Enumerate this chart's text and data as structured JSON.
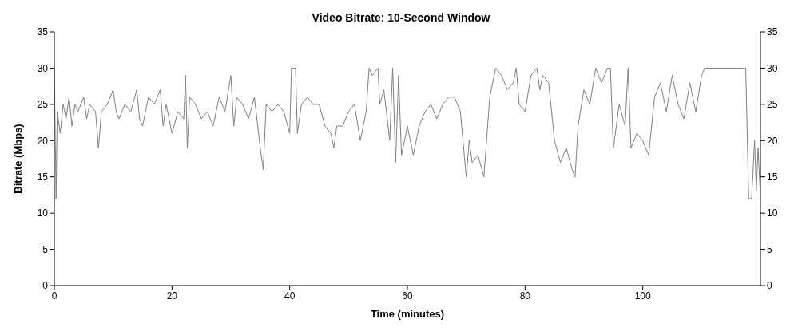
{
  "chart_data": {
    "type": "line",
    "title": "Video Bitrate: 10-Second Window",
    "xlabel": "Time (minutes)",
    "ylabel": "Bitrate (Mbps)",
    "xlim": [
      0,
      120
    ],
    "xticks": [
      0,
      20,
      40,
      60,
      80,
      100
    ],
    "ylim": [
      0,
      35
    ],
    "yticks": [
      0,
      5,
      10,
      15,
      20,
      25,
      30,
      35
    ],
    "y2lim": [
      0,
      35
    ],
    "y2ticks": [
      0,
      5,
      10,
      15,
      20,
      25,
      30,
      35
    ],
    "marker": "none",
    "line_style": "solid",
    "series": [
      {
        "color": "#808080",
        "x": [
          0,
          0.3,
          0.5,
          1,
          1.5,
          2,
          2.5,
          3,
          3.5,
          4,
          5,
          5.5,
          6,
          7,
          7.5,
          8,
          9,
          10,
          10.5,
          11,
          12,
          13,
          14,
          14.5,
          15,
          16,
          17,
          18,
          18.5,
          19,
          20,
          21,
          22,
          22.3,
          22.6,
          23,
          24,
          25,
          26,
          27,
          28,
          29,
          30,
          30.5,
          31,
          32,
          33,
          34,
          35,
          35.5,
          36,
          37,
          38,
          39,
          40,
          40.3,
          41,
          41.3,
          42,
          43,
          44,
          45,
          46,
          47,
          47.5,
          48,
          49,
          50,
          51,
          52,
          53,
          53.5,
          54,
          55,
          55.3,
          56,
          57,
          57.5,
          58,
          58.5,
          59,
          60,
          61,
          62,
          63,
          64,
          65,
          66,
          67,
          68,
          69,
          70,
          70.5,
          71,
          72,
          73,
          74,
          75,
          76,
          77,
          78,
          78.5,
          79,
          80,
          81,
          82,
          82.5,
          83,
          84,
          85,
          86,
          87,
          88,
          88.5,
          89,
          90,
          91,
          92,
          93,
          94,
          94.5,
          95,
          96,
          97,
          97.5,
          98,
          99,
          100,
          101,
          102,
          103,
          104,
          105,
          106,
          107,
          108,
          109,
          110,
          110.5,
          115,
          117.5,
          118,
          118.5,
          119,
          119.3,
          119.6,
          120
        ],
        "values": [
          30,
          12,
          24,
          21,
          25,
          23,
          26,
          22,
          25,
          24,
          26,
          23,
          25,
          24,
          19,
          24,
          25,
          27,
          24,
          23,
          25,
          24,
          27,
          23,
          22,
          26,
          25,
          27,
          22,
          25,
          21,
          24,
          23,
          29,
          19,
          26,
          25,
          23,
          24,
          22,
          26,
          24,
          29,
          22,
          26,
          25,
          23,
          26,
          19,
          16,
          25,
          24,
          25,
          24,
          21,
          30,
          30,
          21,
          25,
          26,
          25,
          25,
          22,
          21,
          19,
          22,
          22,
          24,
          25,
          20,
          24,
          30,
          29,
          30,
          25,
          27,
          20,
          30,
          17,
          29,
          18,
          22,
          18,
          22,
          24,
          25,
          23,
          25,
          26,
          26,
          24,
          15,
          20,
          17,
          18,
          15,
          26,
          30,
          29,
          27,
          28,
          30,
          25,
          24,
          29,
          30,
          27,
          29,
          28,
          20,
          17,
          19,
          16,
          15,
          22,
          27,
          25,
          30,
          28,
          30,
          30,
          19,
          25,
          22,
          30,
          19,
          21,
          20,
          18,
          26,
          28,
          24,
          29,
          25,
          23,
          28,
          24,
          29,
          30,
          30,
          30,
          12,
          12,
          20,
          13,
          19,
          12
        ]
      }
    ]
  }
}
